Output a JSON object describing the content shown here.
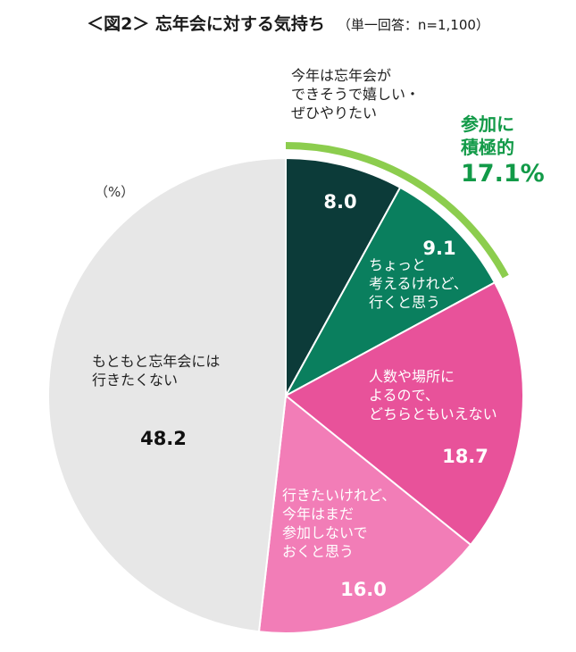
{
  "title": {
    "main": "＜図2＞ 忘年会に対する気持ち",
    "sub": "（単一回答：n=1,100）"
  },
  "unit_label": "（%）",
  "callout": {
    "line1": "参加に",
    "line2": "積極的",
    "value": "17.1%",
    "color": "#1a9a4a"
  },
  "colors": {
    "bracket": "#8ccd4e",
    "slice_border": "#ffffff"
  },
  "chart_data": {
    "type": "pie",
    "start": "12 o'clock, clockwise",
    "slices": [
      {
        "label_lines": [
          "今年は忘年会が",
          "できそうで嬉しい・",
          "ぜひやりたい"
        ],
        "value": 8.0,
        "value_text": "8.0",
        "color": "#0c3b39",
        "label_color": "#222222",
        "value_color": "#ffffff"
      },
      {
        "label_lines": [
          "ちょっと",
          "考えるけれど、",
          "行くと思う"
        ],
        "value": 9.1,
        "value_text": "9.1",
        "color": "#0a7f5e",
        "label_color": "#ffffff",
        "value_color": "#ffffff"
      },
      {
        "label_lines": [
          "人数や場所に",
          "よるので、",
          "どちらともいえない"
        ],
        "value": 18.7,
        "value_text": "18.7",
        "color": "#e8529a",
        "label_color": "#ffffff",
        "value_color": "#ffffff"
      },
      {
        "label_lines": [
          "行きたいけれど、",
          "今年はまだ",
          "参加しないで",
          "おくと思う"
        ],
        "value": 16.0,
        "value_text": "16.0",
        "color": "#f27db7",
        "label_color": "#ffffff",
        "value_color": "#ffffff"
      },
      {
        "label_lines": [
          "もともと忘年会には",
          "行きたくない"
        ],
        "value": 48.2,
        "value_text": "48.2",
        "color": "#e7e7e7",
        "label_color": "#222222",
        "value_color": "#111111"
      }
    ]
  }
}
